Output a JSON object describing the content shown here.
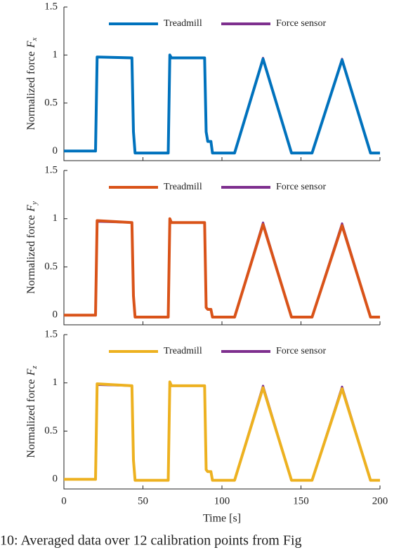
{
  "chart_data": [
    {
      "type": "line",
      "ylabel": {
        "text": "Normalized force",
        "symbol": "F",
        "subscript": "x"
      },
      "x": [
        0,
        20,
        21,
        43,
        44,
        45,
        46,
        66,
        67,
        68,
        89,
        90,
        91,
        93,
        94,
        108,
        126,
        144,
        157,
        176,
        194,
        200
      ],
      "series": [
        {
          "name": "Force sensor",
          "color": "#7e2f8e",
          "values": [
            0,
            0,
            0.98,
            0.97,
            0.2,
            -0.02,
            -0.02,
            -0.02,
            0.98,
            0.97,
            0.97,
            0.2,
            0.1,
            0.1,
            -0.02,
            -0.02,
            0.97,
            -0.02,
            -0.02,
            0.96,
            -0.02,
            -0.02
          ]
        },
        {
          "name": "Treadmill",
          "color": "#0072bd",
          "values": [
            0,
            0,
            0.98,
            0.97,
            0.2,
            -0.02,
            -0.02,
            -0.02,
            1.0,
            0.97,
            0.97,
            0.2,
            0.1,
            0.1,
            -0.02,
            -0.02,
            0.96,
            -0.02,
            -0.02,
            0.95,
            -0.02,
            -0.02
          ]
        }
      ],
      "xlim": [
        0,
        200
      ],
      "xticks": [
        0,
        50,
        100,
        150,
        200
      ],
      "xtick_labels": false,
      "ylim": [
        -0.1,
        1.5
      ],
      "yticks": [
        0,
        0.5,
        1,
        1.5
      ]
    },
    {
      "type": "line",
      "ylabel": {
        "text": "Normalized force",
        "symbol": "F",
        "subscript": "y"
      },
      "x": [
        0,
        20,
        21,
        43,
        44,
        45,
        46,
        66,
        67,
        68,
        89,
        90,
        91,
        93,
        94,
        108,
        126,
        144,
        157,
        176,
        194,
        200
      ],
      "series": [
        {
          "name": "Force sensor",
          "color": "#7e2f8e",
          "values": [
            0,
            0,
            0.97,
            0.96,
            0.2,
            -0.02,
            -0.02,
            -0.02,
            0.97,
            0.96,
            0.96,
            0.08,
            0.06,
            0.06,
            -0.02,
            -0.02,
            0.96,
            -0.02,
            -0.02,
            0.95,
            -0.02,
            -0.02
          ]
        },
        {
          "name": "Treadmill",
          "color": "#d95319",
          "values": [
            0,
            0,
            0.98,
            0.96,
            0.2,
            -0.02,
            -0.02,
            -0.02,
            1.0,
            0.96,
            0.96,
            0.08,
            0.06,
            0.06,
            -0.02,
            -0.02,
            0.94,
            -0.02,
            -0.02,
            0.93,
            -0.02,
            -0.02
          ]
        }
      ],
      "xlim": [
        0,
        200
      ],
      "xticks": [
        0,
        50,
        100,
        150,
        200
      ],
      "xtick_labels": false,
      "ylim": [
        -0.1,
        1.5
      ],
      "yticks": [
        0,
        0.5,
        1,
        1.5
      ]
    },
    {
      "type": "line",
      "ylabel": {
        "text": "Normalized force",
        "symbol": "F",
        "subscript": "z"
      },
      "x": [
        0,
        20,
        21,
        43,
        44,
        45,
        46,
        66,
        67,
        68,
        89,
        90,
        91,
        93,
        94,
        108,
        126,
        144,
        157,
        176,
        194,
        200
      ],
      "series": [
        {
          "name": "Force sensor",
          "color": "#7e2f8e",
          "values": [
            0,
            0,
            0.98,
            0.97,
            0.2,
            -0.01,
            -0.01,
            -0.01,
            0.98,
            0.97,
            0.97,
            0.1,
            0.08,
            0.08,
            -0.01,
            -0.01,
            0.97,
            -0.01,
            -0.01,
            0.96,
            -0.01,
            -0.01
          ]
        },
        {
          "name": "Treadmill",
          "color": "#edb120",
          "values": [
            0,
            0,
            0.99,
            0.97,
            0.2,
            -0.01,
            -0.01,
            -0.01,
            1.01,
            0.97,
            0.97,
            0.1,
            0.08,
            0.08,
            -0.01,
            -0.01,
            0.95,
            -0.01,
            -0.01,
            0.94,
            -0.01,
            -0.01
          ]
        }
      ],
      "xlim": [
        0,
        200
      ],
      "xticks": [
        0,
        50,
        100,
        150,
        200
      ],
      "xtick_labels": true,
      "xlabel": "Time [s]",
      "ylim": [
        -0.1,
        1.5
      ],
      "yticks": [
        0,
        0.5,
        1,
        1.5
      ]
    }
  ],
  "caption": "10: Averaged data over 12 calibration points from Fig"
}
